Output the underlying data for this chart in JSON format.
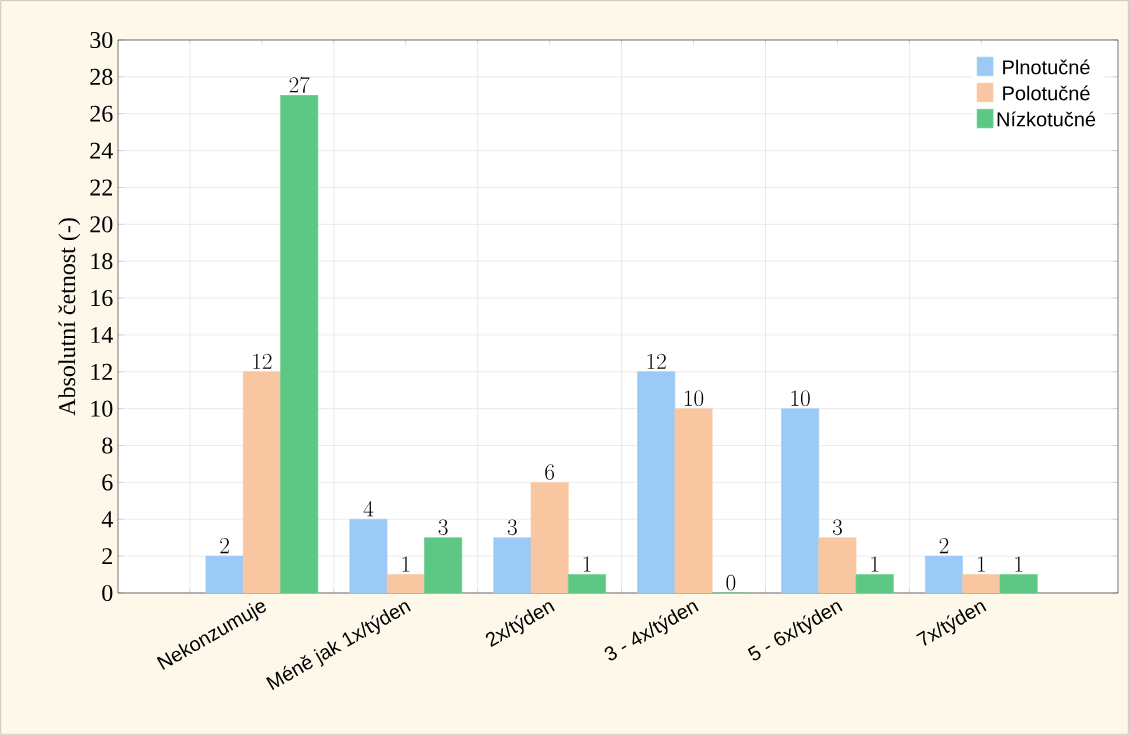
{
  "chart_data": {
    "type": "bar",
    "ylabel": "Absolutní četnost (-)",
    "categories": [
      "Nekonzumuje",
      "Méně jak 1x/týden",
      "2x/týden",
      "3 - 4x/týden",
      "5 - 6x/týden",
      "7x/týden"
    ],
    "series": [
      {
        "name": "Plnotučné",
        "color": "#9ccaf6",
        "values": [
          2,
          4,
          3,
          12,
          10,
          2
        ]
      },
      {
        "name": "Polotučné",
        "color": "#f8c6a0",
        "values": [
          12,
          1,
          6,
          10,
          3,
          1
        ]
      },
      {
        "name": "Nízkotučné",
        "color": "#5cc884",
        "values": [
          27,
          3,
          1,
          0,
          1,
          1
        ]
      }
    ],
    "ylim": [
      0,
      30
    ],
    "yticks": [
      0,
      2,
      4,
      6,
      8,
      10,
      12,
      14,
      16,
      18,
      20,
      22,
      24,
      26,
      28,
      30
    ],
    "data_labels": true,
    "grid": true,
    "legend": "top right"
  }
}
